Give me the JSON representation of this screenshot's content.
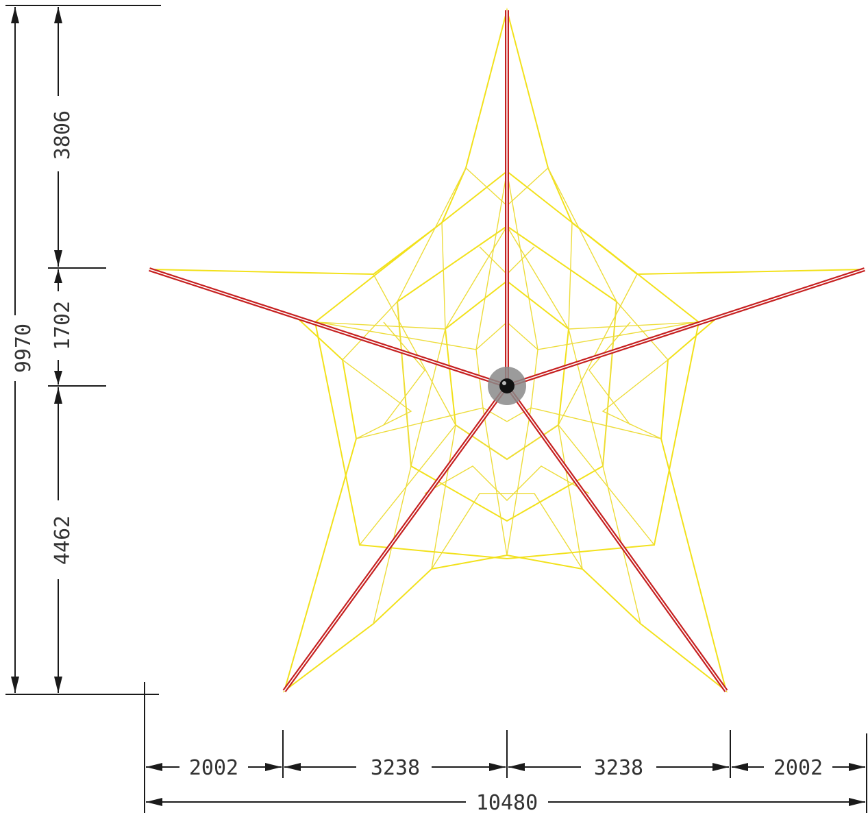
{
  "drawing": {
    "colors": {
      "net": "#f2e11b",
      "cable": "#c62020",
      "line": "#1a1a1a",
      "hub": "#8a8a8a"
    },
    "dimensions": {
      "vertical_total": "9970",
      "vertical_top": "3806",
      "vertical_middle": "1702",
      "vertical_bottom": "4462",
      "horizontal_left_outer": "2002",
      "horizontal_left_inner": "3238",
      "horizontal_right_inner": "3238",
      "horizontal_right_outer": "2002",
      "horizontal_total": "10480"
    }
  }
}
